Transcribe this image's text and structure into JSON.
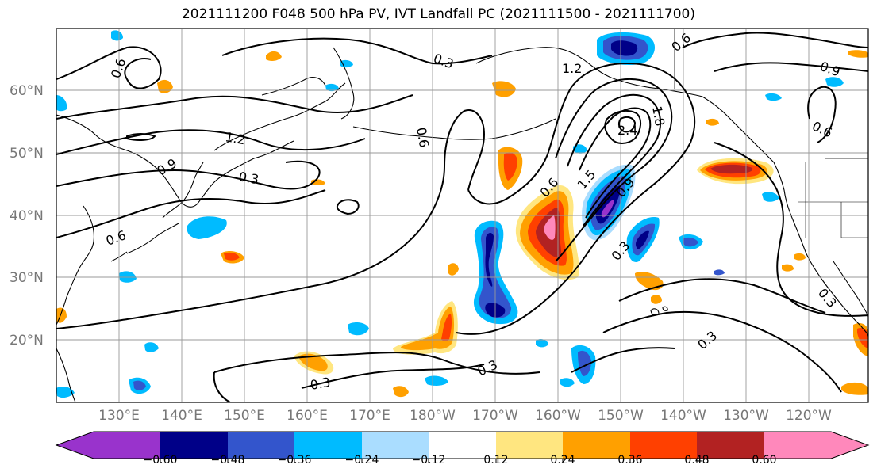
{
  "title": "2021111200 F048 500 hPa PV, IVT Landfall PC (2021111500 - 2021111700)",
  "lat_labels": [
    "60°N",
    "50°N",
    "40°N",
    "30°N",
    "20°N"
  ],
  "lon_labels": [
    "130°E",
    "140°E",
    "150°E",
    "160°E",
    "170°E",
    "180°W",
    "170°W",
    "160°W",
    "150°W",
    "140°W",
    "130°W",
    "120°W"
  ],
  "colorbar": {
    "ticks": [
      "−0.60",
      "−0.48",
      "−0.36",
      "−0.24",
      "−0.12",
      "0.12",
      "0.24",
      "0.36",
      "0.48",
      "0.60"
    ],
    "colors": [
      "#9933cc",
      "#000088",
      "#3355cc",
      "#00bbff",
      "#aaddff",
      "#ffffff",
      "#ffe680",
      "#ffa000",
      "#ff4000",
      "#b22222",
      "#ff88bb"
    ]
  },
  "contour_labels": [
    "0.6",
    "0.3",
    "1.2",
    "0.6",
    "0.9",
    "1.2",
    "0.9",
    "0.3",
    "0.6",
    "0.6",
    "0.3",
    "2.4",
    "1.8",
    "0.6",
    "0.9",
    "0.6",
    "1.5",
    "0.3",
    "0.3",
    "0.3",
    "0.3",
    "0.3",
    "0.3",
    "0.9",
    "0.6"
  ]
}
